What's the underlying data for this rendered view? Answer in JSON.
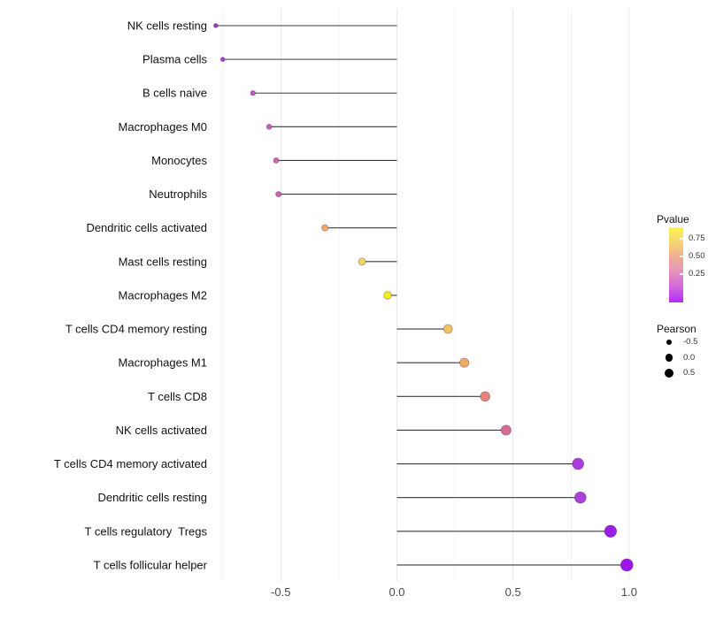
{
  "chart_data": {
    "type": "scatter",
    "subtype": "lollipop",
    "title": "",
    "xlabel": "",
    "ylabel": "",
    "xlim": [
      -0.85,
      1.08
    ],
    "baseline_x": 0,
    "grid": "vertical major+minor, light gray, no axis lines",
    "legend_position": "right",
    "xticks": [
      {
        "value": -0.5,
        "label": "-0.5"
      },
      {
        "value": 0.0,
        "label": "0.0"
      },
      {
        "value": 0.5,
        "label": "0.5"
      },
      {
        "value": 1.0,
        "label": "1.0"
      }
    ],
    "x_minor_gridlines": [
      -0.75,
      -0.25,
      0.25,
      0.75
    ],
    "stem_color": "#3a3a3a",
    "points": [
      {
        "label": "NK cells resting",
        "pearson": -0.78,
        "color": "#9D33BE"
      },
      {
        "label": "Plasma cells",
        "pearson": -0.75,
        "color": "#A840C6"
      },
      {
        "label": "B cells naive",
        "pearson": -0.62,
        "color": "#BE59BE"
      },
      {
        "label": "Macrophages M0",
        "pearson": -0.55,
        "color": "#C762AE"
      },
      {
        "label": "Monocytes",
        "pearson": -0.52,
        "color": "#CB68A8"
      },
      {
        "label": "Neutrophils",
        "pearson": -0.51,
        "color": "#CA66AA"
      },
      {
        "label": "Dendritic cells activated",
        "pearson": -0.31,
        "color": "#F2AA64"
      },
      {
        "label": "Mast cells resting",
        "pearson": -0.15,
        "color": "#F2D75C"
      },
      {
        "label": "Macrophages M2",
        "pearson": -0.04,
        "color": "#F3EE13"
      },
      {
        "label": "T cells CD4 memory resting",
        "pearson": 0.22,
        "color": "#F0C25E"
      },
      {
        "label": "Macrophages M1",
        "pearson": 0.29,
        "color": "#F0AB62"
      },
      {
        "label": "T cells CD8",
        "pearson": 0.38,
        "color": "#E48577"
      },
      {
        "label": "NK cells activated",
        "pearson": 0.47,
        "color": "#D76D95"
      },
      {
        "label": "T cells CD4 memory activated",
        "pearson": 0.78,
        "color": "#A83CDC"
      },
      {
        "label": "Dendritic cells resting",
        "pearson": 0.79,
        "color": "#A940D8"
      },
      {
        "label": "T cells regulatory  Tregs",
        "pearson": 0.92,
        "color": "#9C20E4"
      },
      {
        "label": "T cells follicular helper",
        "pearson": 0.99,
        "color": "#9B16EA"
      }
    ]
  },
  "legend": {
    "pvalue": {
      "title": "Pvalue",
      "gradient_top_to_bottom": [
        "#FBF64B",
        "#F6D573",
        "#EFAC92",
        "#E392BE",
        "#D266DC",
        "#B02BF5"
      ],
      "ticks": [
        {
          "label": "0.75",
          "pos": 0.15
        },
        {
          "label": "0.50",
          "pos": 0.39
        },
        {
          "label": "0.25",
          "pos": 0.62
        }
      ]
    },
    "pearson": {
      "title": "Pearson",
      "dot_color": "#000000",
      "items": [
        {
          "label": "-0.5",
          "size": 6.6
        },
        {
          "label": "0.0",
          "size": 8.8
        },
        {
          "label": "0.5",
          "size": 10.6
        }
      ]
    }
  },
  "colors": {
    "background": "#ffffff",
    "grid_major": "#e8e8e8",
    "grid_minor": "#f2f2f2",
    "axis_text": "#4a4a4a",
    "label_text": "#111111"
  }
}
